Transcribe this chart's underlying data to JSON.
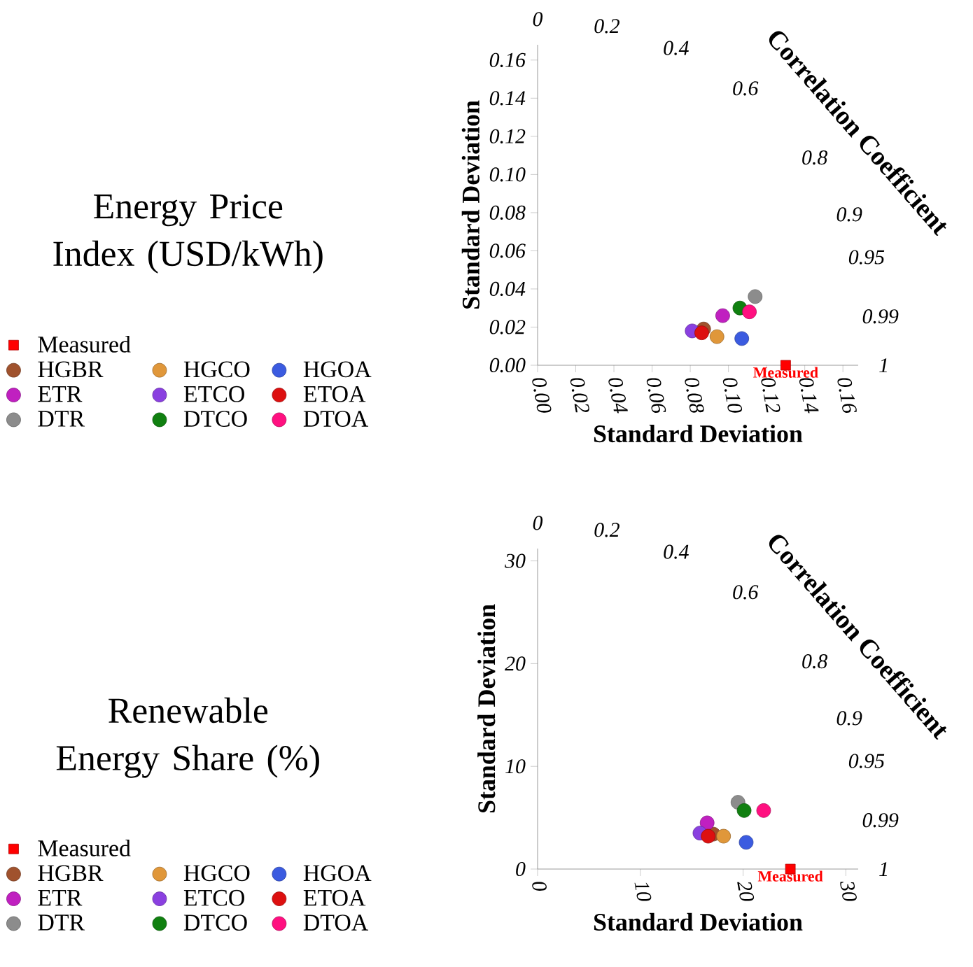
{
  "chart_data": [
    {
      "type": "scatter",
      "title": "Energy Price Index (USD/kWh)",
      "xlabel": "Standard Deviation",
      "ylabel": "Standard Deviation",
      "xlim": [
        0,
        0.168
      ],
      "ylim": [
        0,
        0.168
      ],
      "xticks": [
        {
          "value": 0,
          "label": "0.00"
        },
        {
          "value": 0.02,
          "label": "0.02"
        },
        {
          "value": 0.04,
          "label": "0.04"
        },
        {
          "value": 0.06,
          "label": "0.06"
        },
        {
          "value": 0.08,
          "label": "0.08"
        },
        {
          "value": 0.1,
          "label": "0.10"
        },
        {
          "value": 0.12,
          "label": "0.12"
        },
        {
          "value": 0.14,
          "label": "0.14"
        },
        {
          "value": 0.16,
          "label": "0.16"
        }
      ],
      "yticks": [
        {
          "value": 0,
          "label": "0.00"
        },
        {
          "value": 0.02,
          "label": "0.02"
        },
        {
          "value": 0.04,
          "label": "0.04"
        },
        {
          "value": 0.06,
          "label": "0.06"
        },
        {
          "value": 0.08,
          "label": "0.08"
        },
        {
          "value": 0.1,
          "label": "0.10"
        },
        {
          "value": 0.12,
          "label": "0.12"
        },
        {
          "value": 0.14,
          "label": "0.14"
        },
        {
          "value": 0.16,
          "label": "0.16"
        }
      ],
      "legend": "left",
      "marker": "circle",
      "annotations": [
        "Correlation Coefficient",
        "0",
        "0.2",
        "0.4",
        "0.6",
        "0.8",
        "0.9",
        "0.95",
        "0.99",
        "1",
        {
          "text": "Measured",
          "x": 0.13,
          "y": 0
        }
      ],
      "series": [
        {
          "name": "Measured",
          "color": "#ff0000",
          "marker": "square",
          "x": [
            0.13
          ],
          "values": [
            0
          ]
        },
        {
          "name": "HGBR",
          "color": "#a0522d",
          "x": [
            0.087
          ],
          "values": [
            0.019
          ]
        },
        {
          "name": "HGCO",
          "color": "#e0973a",
          "x": [
            0.094
          ],
          "values": [
            0.015
          ]
        },
        {
          "name": "HGOA",
          "color": "#3b5be0",
          "x": [
            0.107
          ],
          "values": [
            0.014
          ]
        },
        {
          "name": "ETR",
          "color": "#c020c0",
          "x": [
            0.097
          ],
          "values": [
            0.026
          ]
        },
        {
          "name": "ETCO",
          "color": "#8a40e0",
          "x": [
            0.081
          ],
          "values": [
            0.018
          ]
        },
        {
          "name": "ETOA",
          "color": "#dd1010",
          "x": [
            0.086
          ],
          "values": [
            0.017
          ]
        },
        {
          "name": "DTR",
          "color": "#8c8c8c",
          "x": [
            0.114
          ],
          "values": [
            0.036
          ]
        },
        {
          "name": "DTCO",
          "color": "#108010",
          "x": [
            0.106
          ],
          "values": [
            0.03
          ]
        },
        {
          "name": "DTOA",
          "color": "#ff1080",
          "x": [
            0.111
          ],
          "values": [
            0.028
          ]
        }
      ]
    },
    {
      "type": "scatter",
      "title": "Renewable Energy Share (%)",
      "xlabel": "Standard Deviation",
      "ylabel": "Standard Deviation",
      "xlim": [
        0,
        31.2
      ],
      "ylim": [
        0,
        31.2
      ],
      "xticks": [
        0,
        10,
        20,
        30
      ],
      "yticks": [
        0,
        10,
        20,
        30
      ],
      "legend": "left",
      "marker": "circle",
      "annotations": [
        "Correlation Coefficient",
        "0",
        "0.2",
        "0.4",
        "0.6",
        "0.8",
        "0.9",
        "0.95",
        "0.99",
        "1",
        {
          "text": "Measured",
          "x": 24.6,
          "y": 0
        }
      ],
      "series": [
        {
          "name": "Measured",
          "color": "#ff0000",
          "marker": "square",
          "x": [
            24.6
          ],
          "values": [
            0
          ]
        },
        {
          "name": "HGBR",
          "color": "#a0522d",
          "x": [
            17.1
          ],
          "values": [
            3.4
          ]
        },
        {
          "name": "HGCO",
          "color": "#e0973a",
          "x": [
            18.1
          ],
          "values": [
            3.2
          ]
        },
        {
          "name": "HGOA",
          "color": "#3b5be0",
          "x": [
            20.3
          ],
          "values": [
            2.6
          ]
        },
        {
          "name": "ETR",
          "color": "#c020c0",
          "x": [
            16.5
          ],
          "values": [
            4.5
          ]
        },
        {
          "name": "ETCO",
          "color": "#8a40e0",
          "x": [
            15.8
          ],
          "values": [
            3.5
          ]
        },
        {
          "name": "ETOA",
          "color": "#dd1010",
          "x": [
            16.6
          ],
          "values": [
            3.2
          ]
        },
        {
          "name": "DTR",
          "color": "#8c8c8c",
          "x": [
            19.5
          ],
          "values": [
            6.5
          ]
        },
        {
          "name": "DTCO",
          "color": "#108010",
          "x": [
            20.1
          ],
          "values": [
            5.7
          ]
        },
        {
          "name": "DTOA",
          "color": "#ff1080",
          "x": [
            22.0
          ],
          "values": [
            5.7
          ]
        }
      ]
    }
  ]
}
